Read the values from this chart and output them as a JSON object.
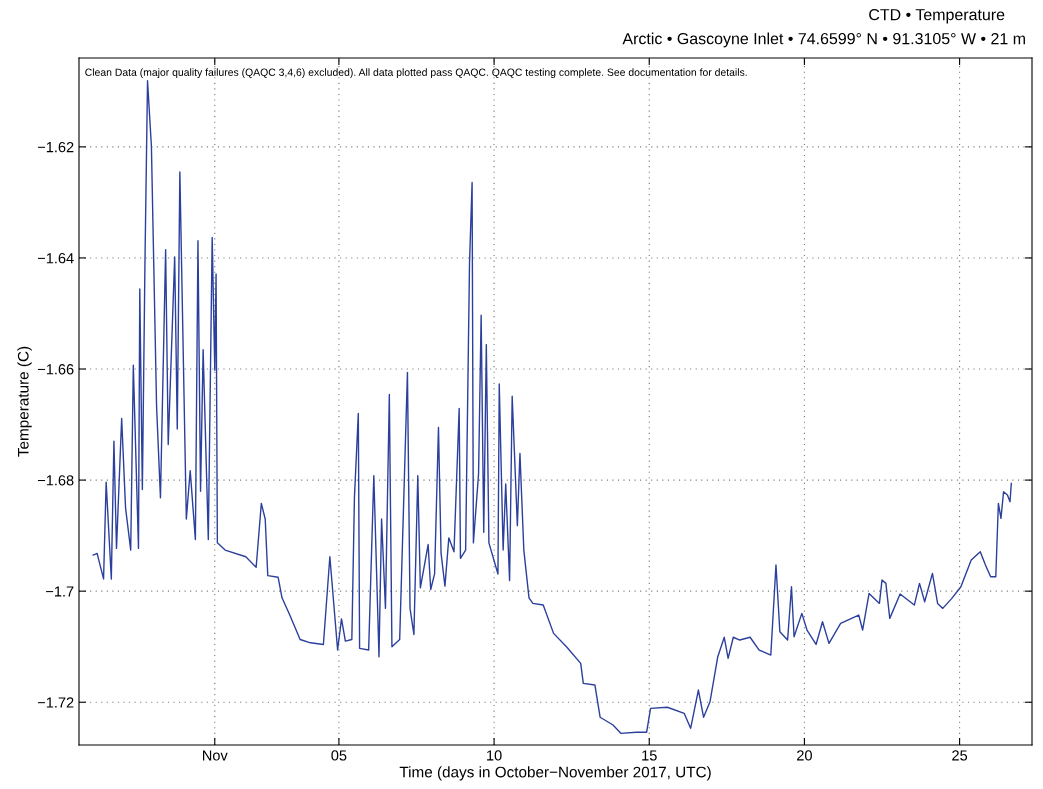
{
  "chart_data": {
    "type": "line",
    "title": "CTD • Temperature",
    "subtitle": "Arctic • Gascoyne Inlet • 74.6599° N • 91.3105° W • 21 m",
    "xlabel": "Time (days in October−November 2017, UTC)",
    "ylabel": "Temperature (C)",
    "annotations": [
      "Clean Data (major quality failures (QAQC 3,4,6) excluded). All data plotted pass QAQC. QAQC testing complete. See documentation for details."
    ],
    "x": [
      "2017-10-28T02:00",
      "2017-10-28T05:00",
      "2017-10-28T10:00",
      "2017-10-28T12:00",
      "2017-10-28T16:00",
      "2017-10-28T18:00",
      "2017-10-28T20:00",
      "2017-10-29T00:00",
      "2017-10-29T03:00",
      "2017-10-29T07:00",
      "2017-10-29T09:00",
      "2017-10-29T13:00",
      "2017-10-29T14:00",
      "2017-10-29T16:00",
      "2017-10-29T18:00",
      "2017-10-29T20:00",
      "2017-10-29T23:00",
      "2017-10-30T03:00",
      "2017-10-30T06:00",
      "2017-10-30T10:00",
      "2017-10-30T12:00",
      "2017-10-30T17:00",
      "2017-10-30T19:00",
      "2017-10-30T21:00",
      "2017-10-31T02:00",
      "2017-10-31T05:00",
      "2017-10-31T09:00",
      "2017-10-31T11:00",
      "2017-10-31T13:00",
      "2017-10-31T15:00",
      "2017-10-31T19:00",
      "2017-10-31T22:00",
      "2017-11-01T00:00",
      "2017-11-01T01:00",
      "2017-11-01T02:00",
      "2017-11-01T08:00",
      "2017-11-02T00:00",
      "2017-11-02T08:00",
      "2017-11-02T12:00",
      "2017-11-02T15:00",
      "2017-11-02T17:00",
      "2017-11-03T01:00",
      "2017-11-03T04:00",
      "2017-11-03T10:00",
      "2017-11-03T18:00",
      "2017-11-04T02:00",
      "2017-11-04T12:00",
      "2017-11-04T17:00",
      "2017-11-04T23:00",
      "2017-11-05T02:00",
      "2017-11-05T05:00",
      "2017-11-05T10:00",
      "2017-11-05T12:00",
      "2017-11-05T15:00",
      "2017-11-05T16:00",
      "2017-11-05T23:00",
      "2017-11-06T03:00",
      "2017-11-06T07:00",
      "2017-11-06T09:00",
      "2017-11-06T12:00",
      "2017-11-06T15:00",
      "2017-11-06T17:00",
      "2017-11-06T23:00",
      "2017-11-07T05:00",
      "2017-11-07T07:00",
      "2017-11-07T10:00",
      "2017-11-07T13:00",
      "2017-11-07T15:00",
      "2017-11-07T21:00",
      "2017-11-07T23:00",
      "2017-11-08T02:00",
      "2017-11-08T05:00",
      "2017-11-08T07:00",
      "2017-11-08T10:00",
      "2017-11-08T13:00",
      "2017-11-08T17:00",
      "2017-11-08T21:00",
      "2017-11-08T22:00",
      "2017-11-09T02:00",
      "2017-11-09T05:00",
      "2017-11-09T07:00",
      "2017-11-09T08:00",
      "2017-11-09T12:00",
      "2017-11-09T14:00",
      "2017-11-09T16:00",
      "2017-11-09T18:00",
      "2017-11-09T20:00",
      "2017-11-10T03:00",
      "2017-11-10T04:00",
      "2017-11-10T07:00",
      "2017-11-10T09:00",
      "2017-11-10T12:00",
      "2017-11-10T14:00",
      "2017-11-10T18:00",
      "2017-11-10T20:00",
      "2017-11-10T23:00",
      "2017-11-11T03:00",
      "2017-11-11T06:00",
      "2017-11-11T14:00",
      "2017-11-11T22:00",
      "2017-11-12T08:00",
      "2017-11-12T19:00",
      "2017-11-12T21:00",
      "2017-11-13T06:00",
      "2017-11-13T10:00",
      "2017-11-13T20:00",
      "2017-11-14T02:00",
      "2017-11-14T14:00",
      "2017-11-14T22:00",
      "2017-11-15T01:00",
      "2017-11-15T14:00",
      "2017-11-16T03:00",
      "2017-11-16T08:00",
      "2017-11-16T14:00",
      "2017-11-16T18:00",
      "2017-11-16T23:00",
      "2017-11-17T05:00",
      "2017-11-17T10:00",
      "2017-11-17T13:00",
      "2017-11-17T17:00",
      "2017-11-17T22:00",
      "2017-11-18T06:00",
      "2017-11-18T13:00",
      "2017-11-18T22:00",
      "2017-11-19T02:00",
      "2017-11-19T05:00",
      "2017-11-19T11:00",
      "2017-11-19T14:00",
      "2017-11-19T16:00",
      "2017-11-19T22:00",
      "2017-11-20T02:00",
      "2017-11-20T09:00",
      "2017-11-20T14:00",
      "2017-11-20T19:00",
      "2017-11-21T04:00",
      "2017-11-21T18:00",
      "2017-11-21T21:00",
      "2017-11-22T02:00",
      "2017-11-22T10:00",
      "2017-11-22T12:00",
      "2017-11-22T15:00",
      "2017-11-22T18:00",
      "2017-11-23T02:00",
      "2017-11-23T13:00",
      "2017-11-23T17:00",
      "2017-11-23T21:00",
      "2017-11-24T03:00",
      "2017-11-24T07:00",
      "2017-11-24T11:00",
      "2017-11-24T18:00",
      "2017-11-25T01:00",
      "2017-11-25T09:00",
      "2017-11-25T16:00",
      "2017-11-25T20:00",
      "2017-11-26T00:00",
      "2017-11-26T04:00",
      "2017-11-26T06:00",
      "2017-11-26T08:00",
      "2017-11-26T10:00",
      "2017-11-26T13:00",
      "2017-11-26T15:00",
      "2017-11-26T16:00"
    ],
    "series": [
      {
        "color": "#2b3f9c",
        "values": [
          -1.6935,
          -1.6932,
          -1.6978,
          -1.6804,
          -1.6978,
          -1.673,
          -1.6923,
          -1.6689,
          -1.685,
          -1.6926,
          -1.6593,
          -1.6923,
          -1.6456,
          -1.6817,
          -1.641,
          -1.6081,
          -1.6199,
          -1.6668,
          -1.6832,
          -1.6385,
          -1.6736,
          -1.6398,
          -1.6708,
          -1.6245,
          -1.687,
          -1.6783,
          -1.6907,
          -1.6369,
          -1.682,
          -1.6565,
          -1.6907,
          -1.6363,
          -1.6602,
          -1.6429,
          -1.6913,
          -1.6926,
          -1.6938,
          -1.6957,
          -1.6842,
          -1.687,
          -1.6972,
          -1.6975,
          -1.7012,
          -1.7043,
          -1.7087,
          -1.7093,
          -1.7096,
          -1.6938,
          -1.7106,
          -1.705,
          -1.709,
          -1.7087,
          -1.6832,
          -1.668,
          -1.7103,
          -1.7106,
          -1.6792,
          -1.7118,
          -1.687,
          -1.7031,
          -1.6646,
          -1.71,
          -1.7087,
          -1.6606,
          -1.7031,
          -1.7078,
          -1.6792,
          -1.6994,
          -1.6916,
          -1.6997,
          -1.6969,
          -1.6705,
          -1.6932,
          -1.6991,
          -1.6904,
          -1.6929,
          -1.6671,
          -1.6941,
          -1.6926,
          -1.641,
          -1.6264,
          -1.6913,
          -1.6789,
          -1.6503,
          -1.6894,
          -1.6556,
          -1.6913,
          -1.6969,
          -1.6627,
          -1.6926,
          -1.6807,
          -1.6981,
          -1.6649,
          -1.6882,
          -1.6752,
          -1.6926,
          -1.7012,
          -1.7022,
          -1.7025,
          -1.7076,
          -1.71,
          -1.713,
          -1.7166,
          -1.7169,
          -1.7227,
          -1.7241,
          -1.7256,
          -1.7254,
          -1.7254,
          -1.7211,
          -1.7209,
          -1.722,
          -1.7247,
          -1.7178,
          -1.7227,
          -1.7199,
          -1.7118,
          -1.7083,
          -1.7121,
          -1.7083,
          -1.7088,
          -1.7083,
          -1.7106,
          -1.7115,
          -1.6953,
          -1.7073,
          -1.7088,
          -1.6992,
          -1.7082,
          -1.704,
          -1.707,
          -1.7096,
          -1.7055,
          -1.7094,
          -1.7058,
          -1.7043,
          -1.707,
          -1.7004,
          -1.7022,
          -1.698,
          -1.6986,
          -1.7049,
          -1.7005,
          -1.7025,
          -1.6986,
          -1.7019,
          -1.6968,
          -1.7022,
          -1.7031,
          -1.7013,
          -1.6992,
          -1.6944,
          -1.6929,
          -1.6953,
          -1.6974,
          -1.6974,
          -1.6842,
          -1.6869,
          -1.6821,
          -1.6827,
          -1.6839,
          -1.6806
        ]
      }
    ],
    "xlim": [
      "2017-10-27T15:00",
      "2017-11-27T08:00"
    ],
    "xticks": [
      {
        "value": "2017-11-01",
        "label": "Nov"
      },
      {
        "value": "2017-11-05",
        "label": "05"
      },
      {
        "value": "2017-11-10",
        "label": "10"
      },
      {
        "value": "2017-11-15",
        "label": "15"
      },
      {
        "value": "2017-11-20",
        "label": "20"
      },
      {
        "value": "2017-11-25",
        "label": "25"
      }
    ],
    "ylim": [
      -1.7277,
      -1.604
    ],
    "yticks": [
      {
        "value": -1.72,
        "label": "−1.72"
      },
      {
        "value": -1.7,
        "label": "−1.7"
      },
      {
        "value": -1.68,
        "label": "−1.68"
      },
      {
        "value": -1.66,
        "label": "−1.66"
      },
      {
        "value": -1.64,
        "label": "−1.64"
      },
      {
        "value": -1.62,
        "label": "−1.62"
      }
    ],
    "grid": true,
    "line_style": "solid",
    "marker": "none"
  }
}
